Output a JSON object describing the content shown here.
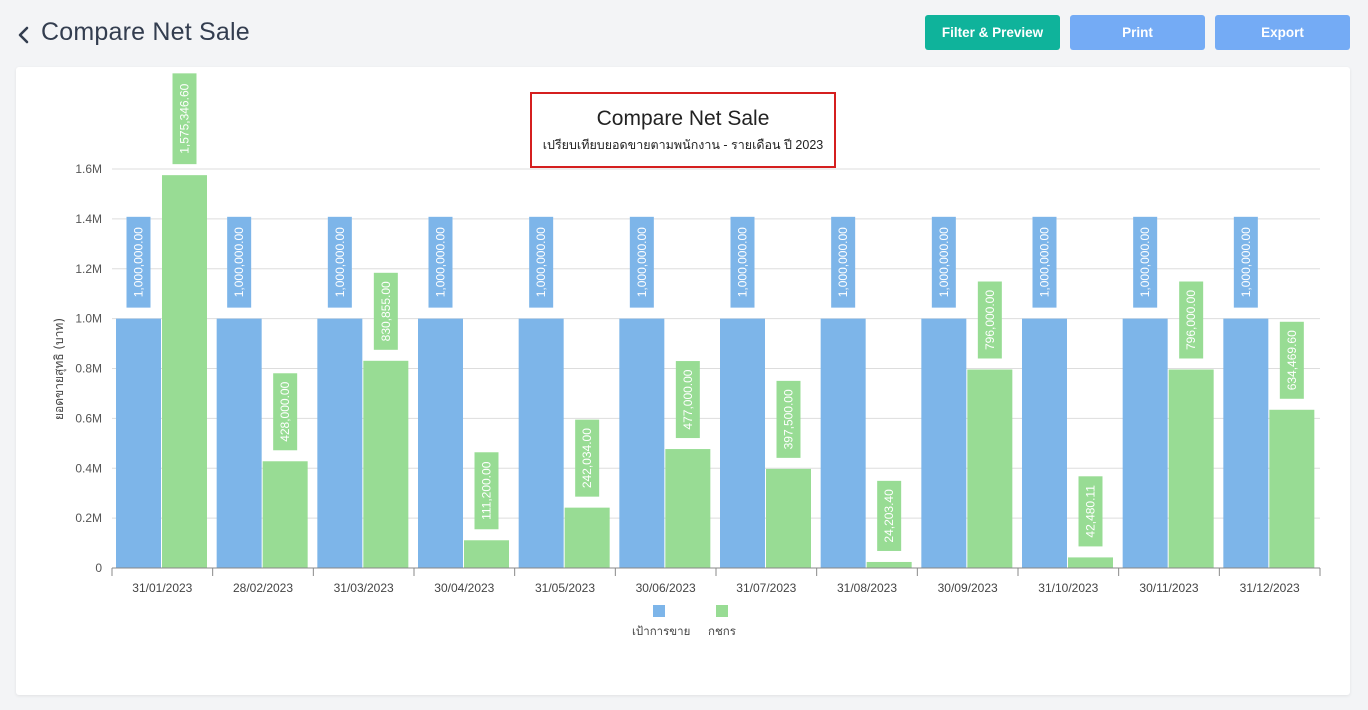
{
  "header": {
    "title": "Compare Net Sale",
    "buttons": {
      "filter": "Filter & Preview",
      "print": "Print",
      "export": "Export"
    }
  },
  "icons": {
    "back": "chevron-left-icon"
  },
  "colors": {
    "target": "#7db5e9",
    "actual": "#98dc94",
    "teal": "#0fb39b",
    "blue_button": "#74abf5",
    "highlight_border": "#d51f1f"
  },
  "chart_data": {
    "type": "bar",
    "title": "Compare Net Sale",
    "subtitle": "เปรียบเทียบยอดขายตามพนักงาน - รายเดือน ปี 2023",
    "ylabel": "ยอดขายสุทธิ (บาท)",
    "xlabel": "",
    "ylim": [
      0,
      1600000
    ],
    "yticks": [
      "0",
      "0.2M",
      "0.4M",
      "0.6M",
      "0.8M",
      "1.0M",
      "1.2M",
      "1.4M",
      "1.6M"
    ],
    "ytick_values": [
      0,
      200000,
      400000,
      600000,
      800000,
      1000000,
      1200000,
      1400000,
      1600000
    ],
    "grid": true,
    "legend_position": "bottom",
    "categories": [
      "31/01/2023",
      "28/02/2023",
      "31/03/2023",
      "30/04/2023",
      "31/05/2023",
      "30/06/2023",
      "31/07/2023",
      "31/08/2023",
      "30/09/2023",
      "31/10/2023",
      "30/11/2023",
      "31/12/2023"
    ],
    "series": [
      {
        "name": "เป้าการขาย",
        "values": [
          1000000,
          1000000,
          1000000,
          1000000,
          1000000,
          1000000,
          1000000,
          1000000,
          1000000,
          1000000,
          1000000,
          1000000
        ],
        "labels": [
          "1,000,000.00",
          "1,000,000.00",
          "1,000,000.00",
          "1,000,000.00",
          "1,000,000.00",
          "1,000,000.00",
          "1,000,000.00",
          "1,000,000.00",
          "1,000,000.00",
          "1,000,000.00",
          "1,000,000.00",
          "1,000,000.00"
        ]
      },
      {
        "name": "กชกร",
        "values": [
          1575346.6,
          428000,
          830855,
          111200,
          242034,
          477000,
          397500,
          24203.4,
          796000,
          42480.11,
          796000,
          634469.6
        ],
        "labels": [
          "1,575,346.60",
          "428,000.00",
          "830,855.00",
          "111,200.00",
          "242,034.00",
          "477,000.00",
          "397,500.00",
          "24,203.40",
          "796,000.00",
          "42,480.11",
          "796,000.00",
          "634,469.60"
        ]
      }
    ]
  }
}
